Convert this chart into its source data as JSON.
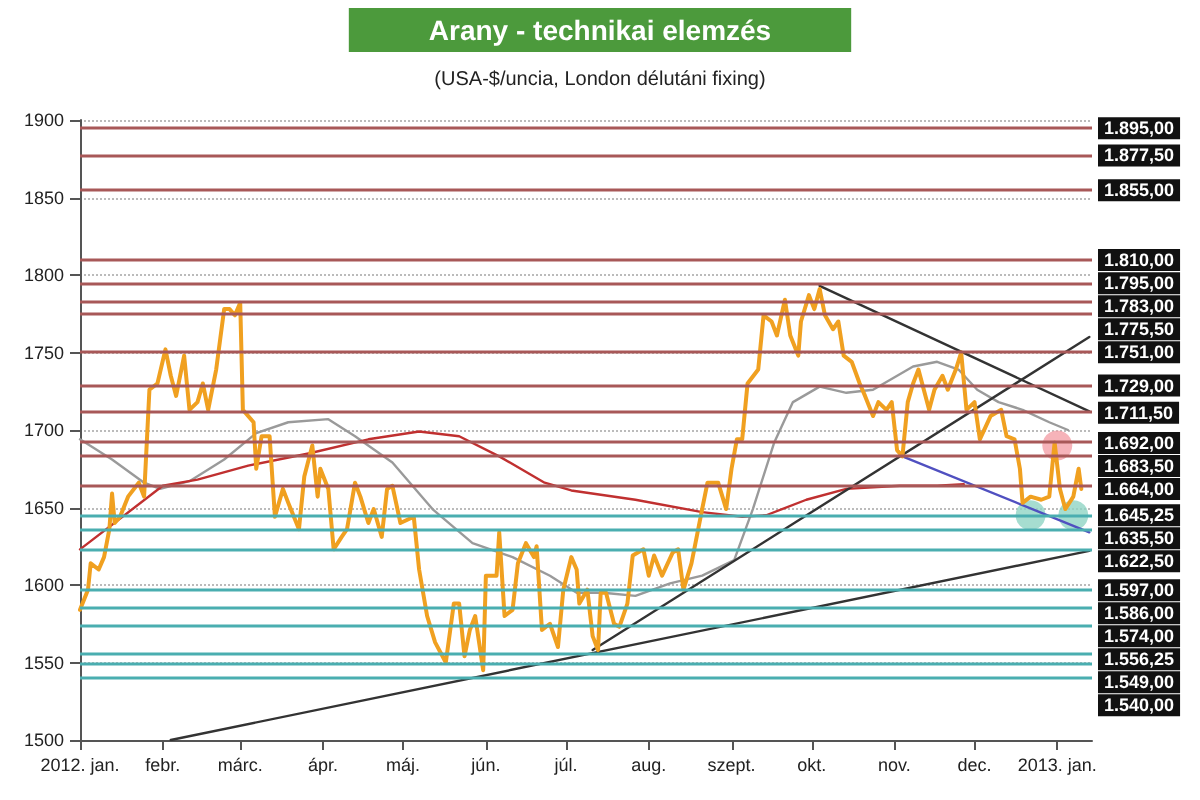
{
  "chart_data": {
    "type": "line",
    "title": "Arany - technikai elemzés",
    "subtitle": "(USA-$/uncia, London délutáni fixing)",
    "xlim": [
      "2012-01-01",
      "2013-01-14"
    ],
    "xticks": [
      {
        "value": "2012-01",
        "label": "2012. jan."
      },
      {
        "value": "2012-02",
        "label": "febr."
      },
      {
        "value": "2012-03",
        "label": "márc."
      },
      {
        "value": "2012-04",
        "label": "ápr."
      },
      {
        "value": "2012-05",
        "label": "máj."
      },
      {
        "value": "2012-06",
        "label": "jún."
      },
      {
        "value": "2012-07",
        "label": "júl."
      },
      {
        "value": "2012-08",
        "label": "aug."
      },
      {
        "value": "2012-09",
        "label": "szept."
      },
      {
        "value": "2012-10",
        "label": "okt."
      },
      {
        "value": "2012-11",
        "label": "nov."
      },
      {
        "value": "2012-12",
        "label": "dec."
      },
      {
        "value": "2013-01",
        "label": "2013. jan."
      }
    ],
    "ylim": [
      1500,
      1900
    ],
    "yticks": [
      1500,
      1550,
      1600,
      1650,
      1700,
      1750,
      1800,
      1850,
      1900
    ],
    "grid": "y",
    "marker": "none",
    "line_style": "solid",
    "series": [
      {
        "color": "#9a9a9a",
        "x": [
          "2012-01-01",
          "2012-01-13",
          "2012-01-25",
          "2012-01-31",
          "2012-02-11",
          "2012-02-24",
          "2012-03-07",
          "2012-03-19",
          "2012-04-03",
          "2012-04-13",
          "2012-04-27",
          "2012-05-12",
          "2012-05-27",
          "2012-06-11",
          "2012-06-25",
          "2012-07-05",
          "2012-07-15",
          "2012-07-27",
          "2012-08-09",
          "2012-08-21",
          "2012-09-02",
          "2012-09-09",
          "2012-09-17",
          "2012-09-24",
          "2012-10-04",
          "2012-10-14",
          "2012-10-24",
          "2012-11-08",
          "2012-11-17",
          "2012-11-25",
          "2012-12-02",
          "2012-12-10",
          "2012-12-19",
          "2012-12-29",
          "2013-01-05"
        ],
        "values": [
          1694,
          1681,
          1666,
          1662,
          1667,
          1681,
          1698,
          1705,
          1707,
          1696,
          1679,
          1649,
          1627,
          1618,
          1606,
          1595,
          1595,
          1593,
          1601,
          1606,
          1616,
          1649,
          1692,
          1718,
          1728,
          1724,
          1726,
          1741,
          1744,
          1739,
          1726,
          1718,
          1713,
          1705,
          1700
        ]
      },
      {
        "color": "#c03030",
        "x": [
          "2012-01-01",
          "2012-02-01",
          "2012-02-14",
          "2012-03-04",
          "2012-03-27",
          "2012-04-18",
          "2012-05-07",
          "2012-05-22",
          "2012-06-06",
          "2012-06-23",
          "2012-07-03",
          "2012-07-27",
          "2012-08-21",
          "2012-09-05",
          "2012-09-14",
          "2012-09-29",
          "2012-10-14",
          "2012-11-03",
          "2012-11-17",
          "2012-11-27"
        ],
        "values": [
          1623,
          1664,
          1668,
          1677,
          1685,
          1694,
          1699,
          1696,
          1683,
          1666,
          1661,
          1655,
          1647,
          1644,
          1645,
          1655,
          1662,
          1664,
          1664,
          1665
        ]
      },
      {
        "color": "#333333",
        "x": [
          "2012-02-04",
          "2013-01-13"
        ],
        "values": [
          1500,
          1622
        ]
      },
      {
        "color": "#333333",
        "x": [
          "2012-07-11",
          "2013-01-13"
        ],
        "values": [
          1558,
          1760
        ]
      },
      {
        "color": "#333333",
        "x": [
          "2012-10-04",
          "2013-01-13"
        ],
        "values": [
          1793,
          1712
        ]
      },
      {
        "color": "#5050c0",
        "x": [
          "2012-11-04",
          "2013-01-13"
        ],
        "values": [
          1683,
          1634
        ]
      },
      {
        "color": "#f0a020",
        "x": [
          "2012-01-01",
          "2012-01-04",
          "2012-01-05",
          "2012-01-08",
          "2012-01-10",
          "2012-01-12",
          "2012-01-13",
          "2012-01-14",
          "2012-01-16",
          "2012-01-19",
          "2012-01-23",
          "2012-01-25",
          "2012-01-27",
          "2012-01-30",
          "2012-02-02",
          "2012-02-04",
          "2012-02-06",
          "2012-02-09",
          "2012-02-11",
          "2012-02-14",
          "2012-02-16",
          "2012-02-18",
          "2012-02-21",
          "2012-02-24",
          "2012-02-26",
          "2012-02-28",
          "2012-03-01",
          "2012-03-02",
          "2012-03-06",
          "2012-03-07",
          "2012-03-09",
          "2012-03-12",
          "2012-03-14",
          "2012-03-17",
          "2012-03-19",
          "2012-03-23",
          "2012-03-25",
          "2012-03-28",
          "2012-03-30",
          "2012-03-31",
          "2012-04-03",
          "2012-04-05",
          "2012-04-08",
          "2012-04-10",
          "2012-04-13",
          "2012-04-15",
          "2012-04-18",
          "2012-04-20",
          "2012-04-23",
          "2012-04-25",
          "2012-04-27",
          "2012-04-30",
          "2012-05-05",
          "2012-05-07",
          "2012-05-10",
          "2012-05-13",
          "2012-05-17",
          "2012-05-20",
          "2012-05-22",
          "2012-05-24",
          "2012-05-26",
          "2012-05-28",
          "2012-05-31",
          "2012-06-01",
          "2012-06-05",
          "2012-06-06",
          "2012-06-08",
          "2012-06-11",
          "2012-06-13",
          "2012-06-16",
          "2012-06-19",
          "2012-06-20",
          "2012-06-22",
          "2012-06-25",
          "2012-06-28",
          "2012-06-30",
          "2012-07-03",
          "2012-07-05",
          "2012-07-06",
          "2012-07-09",
          "2012-07-11",
          "2012-07-13",
          "2012-07-14",
          "2012-07-16",
          "2012-07-19",
          "2012-07-21",
          "2012-07-24",
          "2012-07-26",
          "2012-07-30",
          "2012-08-01",
          "2012-08-03",
          "2012-08-06",
          "2012-08-10",
          "2012-08-12",
          "2012-08-14",
          "2012-08-17",
          "2012-08-21",
          "2012-08-23",
          "2012-08-27",
          "2012-08-30",
          "2012-09-01",
          "2012-09-03",
          "2012-09-05",
          "2012-09-07",
          "2012-09-11",
          "2012-09-13",
          "2012-09-16",
          "2012-09-18",
          "2012-09-21",
          "2012-09-23",
          "2012-09-26",
          "2012-09-27",
          "2012-09-30",
          "2012-10-02",
          "2012-10-04",
          "2012-10-06",
          "2012-10-09",
          "2012-10-11",
          "2012-10-13",
          "2012-10-16",
          "2012-10-19",
          "2012-10-21",
          "2012-10-24",
          "2012-10-26",
          "2012-10-29",
          "2012-10-31",
          "2012-11-02",
          "2012-11-04",
          "2012-11-06",
          "2012-11-08",
          "2012-11-10",
          "2012-11-14",
          "2012-11-16",
          "2012-11-19",
          "2012-11-21",
          "2012-11-24",
          "2012-11-26",
          "2012-11-28",
          "2012-12-01",
          "2012-12-03",
          "2012-12-07",
          "2012-12-11",
          "2012-12-13",
          "2012-12-16",
          "2012-12-18",
          "2012-12-19",
          "2012-12-22",
          "2012-12-26",
          "2012-12-29",
          "2012-12-31",
          "2013-01-02",
          "2013-01-04",
          "2013-01-07",
          "2013-01-09",
          "2013-01-10"
        ],
        "values": [
          1584,
          1597,
          1614,
          1610,
          1618,
          1636,
          1659,
          1640,
          1644,
          1657,
          1666,
          1657,
          1726,
          1730,
          1752,
          1735,
          1722,
          1748,
          1713,
          1718,
          1730,
          1713,
          1739,
          1778,
          1778,
          1774,
          1782,
          1713,
          1705,
          1675,
          1696,
          1696,
          1644,
          1662,
          1653,
          1636,
          1670,
          1690,
          1657,
          1675,
          1662,
          1623,
          1631,
          1636,
          1666,
          1657,
          1640,
          1649,
          1631,
          1662,
          1664,
          1640,
          1644,
          1610,
          1580,
          1563,
          1550,
          1588,
          1588,
          1554,
          1571,
          1580,
          1545,
          1606,
          1606,
          1634,
          1580,
          1584,
          1614,
          1627,
          1618,
          1625,
          1571,
          1575,
          1560,
          1597,
          1618,
          1610,
          1588,
          1597,
          1567,
          1558,
          1595,
          1595,
          1575,
          1573,
          1588,
          1619,
          1623,
          1606,
          1619,
          1606,
          1621,
          1623,
          1597,
          1614,
          1649,
          1666,
          1666,
          1649,
          1675,
          1694,
          1694,
          1730,
          1739,
          1774,
          1770,
          1761,
          1784,
          1761,
          1748,
          1770,
          1787,
          1778,
          1791,
          1774,
          1765,
          1770,
          1748,
          1744,
          1730,
          1722,
          1709,
          1718,
          1713,
          1718,
          1687,
          1683,
          1718,
          1730,
          1739,
          1713,
          1726,
          1735,
          1726,
          1739,
          1750,
          1713,
          1718,
          1694,
          1709,
          1713,
          1696,
          1694,
          1675,
          1653,
          1657,
          1655,
          1657,
          1692,
          1662,
          1649,
          1657,
          1675,
          1662
        ]
      },
      {
        "type": "scatter",
        "marker": "circle",
        "color": "#f4a0a8",
        "x": [
          "2013-01-01"
        ],
        "values": [
          1690
        ]
      },
      {
        "type": "scatter",
        "marker": "circle",
        "color": "#90d4c4",
        "x": [
          "2012-12-22",
          "2013-01-07"
        ],
        "values": [
          1645,
          1645
        ]
      }
    ],
    "ref_lines": [
      {
        "axis": "y",
        "value": 1895,
        "label": "1.895,00",
        "color": "#a85858"
      },
      {
        "axis": "y",
        "value": 1877.5,
        "label": "1.877,50",
        "color": "#a85858"
      },
      {
        "axis": "y",
        "value": 1855,
        "label": "1.855,00",
        "color": "#a85858"
      },
      {
        "axis": "y",
        "value": 1810,
        "label": "1.810,00",
        "color": "#a85858"
      },
      {
        "axis": "y",
        "value": 1795,
        "label": "1.795,00",
        "color": "#a85858"
      },
      {
        "axis": "y",
        "value": 1783,
        "label": "1.783,00",
        "color": "#a85858"
      },
      {
        "axis": "y",
        "value": 1775.5,
        "label": "1.775,50",
        "color": "#a85858"
      },
      {
        "axis": "y",
        "value": 1751,
        "label": "1.751,00",
        "color": "#a85858"
      },
      {
        "axis": "y",
        "value": 1729,
        "label": "1.729,00",
        "color": "#a85858"
      },
      {
        "axis": "y",
        "value": 1711.5,
        "label": "1.711,50",
        "color": "#a85858"
      },
      {
        "axis": "y",
        "value": 1692,
        "label": "1.692,00",
        "color": "#a85858"
      },
      {
        "axis": "y",
        "value": 1683.5,
        "label": "1.683,50",
        "color": "#a85858"
      },
      {
        "axis": "y",
        "value": 1664,
        "label": "1.664,00",
        "color": "#a85858"
      },
      {
        "axis": "y",
        "value": 1645.25,
        "label": "1.645,25",
        "color": "#4aaeb0"
      },
      {
        "axis": "y",
        "value": 1635.5,
        "label": "1.635,50",
        "color": "#4aaeb0"
      },
      {
        "axis": "y",
        "value": 1622.5,
        "label": "1.622,50",
        "color": "#4aaeb0"
      },
      {
        "axis": "y",
        "value": 1597,
        "label": "1.597,00",
        "color": "#4aaeb0"
      },
      {
        "axis": "y",
        "value": 1586,
        "label": "1.586,00",
        "color": "#4aaeb0"
      },
      {
        "axis": "y",
        "value": 1574,
        "label": "1.574,00",
        "color": "#4aaeb0"
      },
      {
        "axis": "y",
        "value": 1556.25,
        "label": "1.556,25",
        "color": "#4aaeb0"
      },
      {
        "axis": "y",
        "value": 1549,
        "label": "1.549,00",
        "color": "#4aaeb0"
      },
      {
        "axis": "y",
        "value": 1540,
        "label": "1.540,00",
        "color": "#4aaeb0"
      }
    ]
  }
}
